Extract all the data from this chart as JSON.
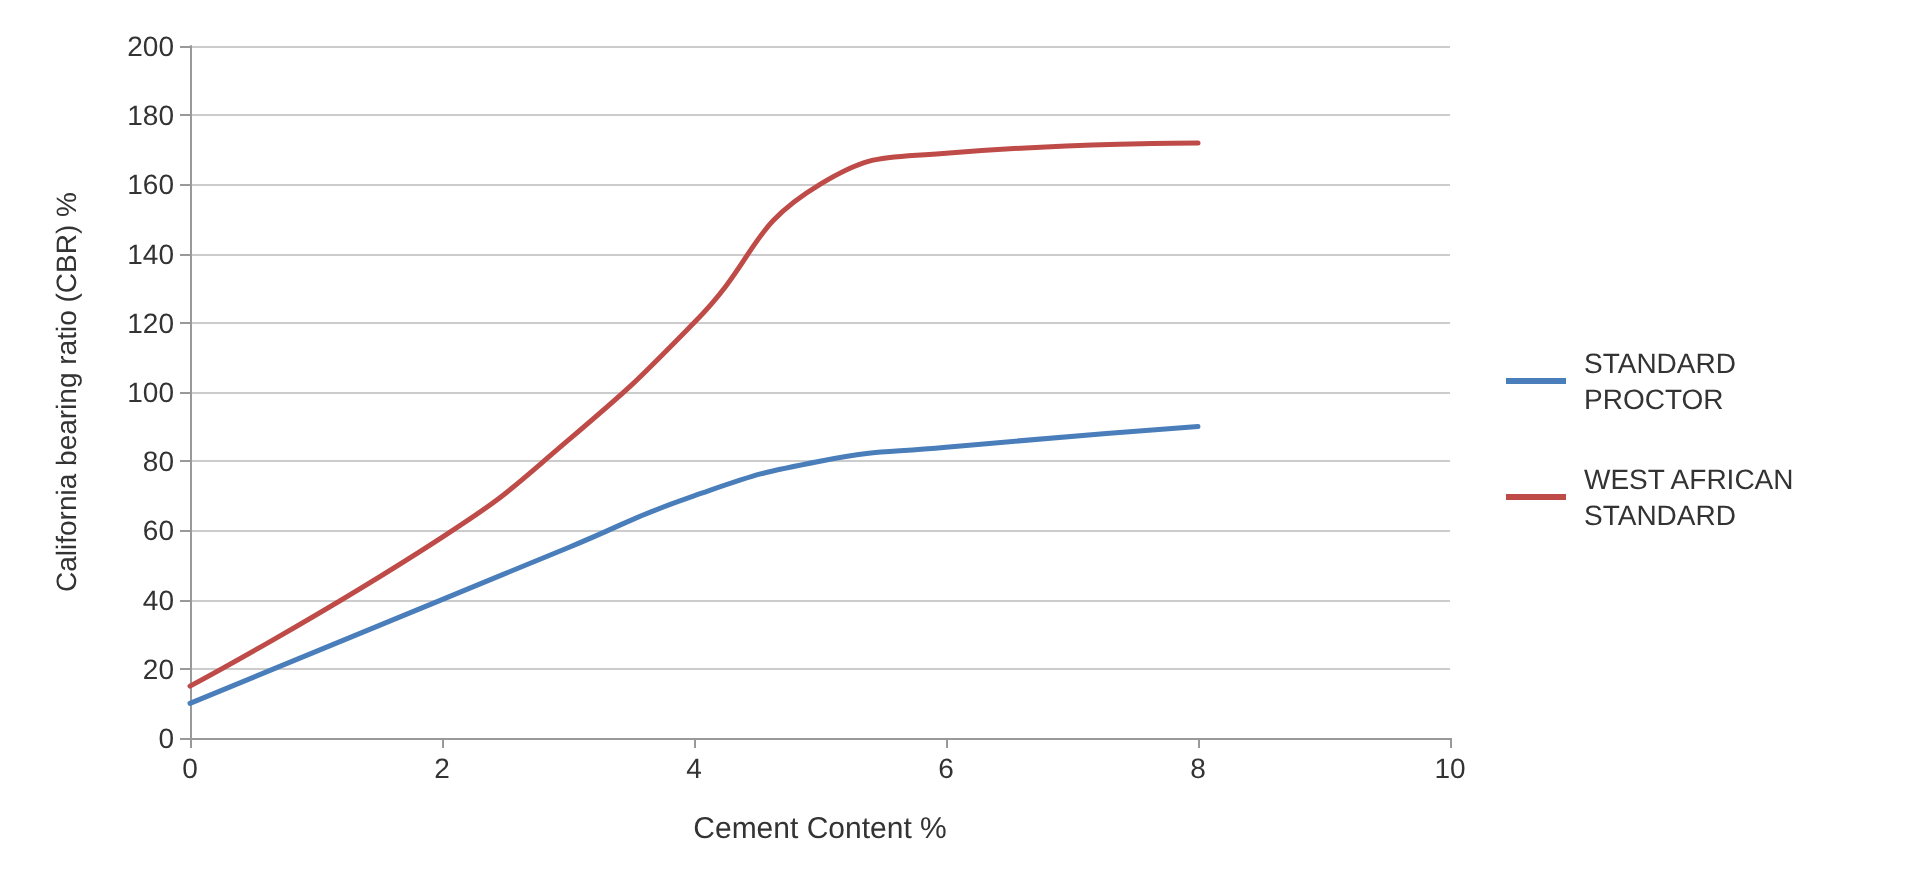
{
  "chart_data": {
    "type": "line",
    "xlabel": "Cement Content %",
    "ylabel": "California bearing ratio (CBR) %",
    "xlim": [
      0,
      10
    ],
    "xticks": [
      0,
      2,
      4,
      6,
      8,
      10
    ],
    "ylim": [
      0,
      200
    ],
    "yticks": [
      0,
      20,
      40,
      60,
      80,
      100,
      120,
      140,
      160,
      180,
      200
    ],
    "grid": "y",
    "legend": "right",
    "marker": "none",
    "series": [
      {
        "name": "STANDARD PROCTOR",
        "color": "#4a7ebb",
        "x": [
          0,
          2,
          3,
          4,
          5,
          6,
          8
        ],
        "values": [
          10,
          40,
          55,
          70,
          80,
          84,
          90
        ]
      },
      {
        "name": "WEST AFRICAN STANDARD",
        "color": "#be4b48",
        "x": [
          0,
          2,
          3,
          4,
          5,
          6,
          8
        ],
        "values": [
          15,
          58,
          86,
          120,
          160,
          169,
          172
        ]
      }
    ]
  }
}
